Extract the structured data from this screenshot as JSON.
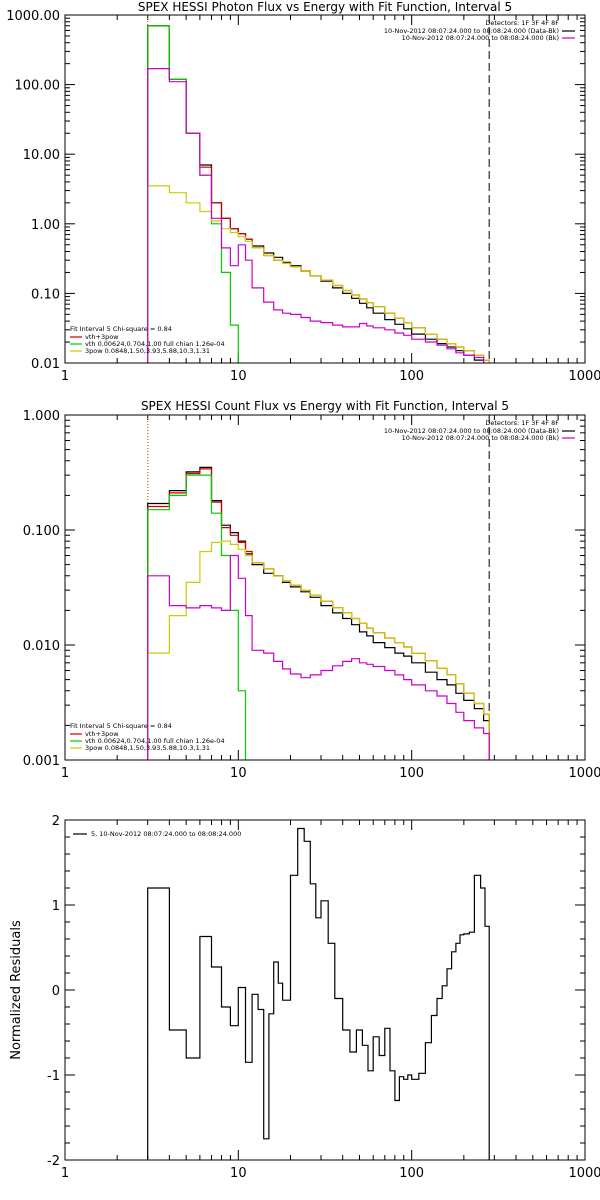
{
  "chart_data": [
    {
      "type": "line",
      "title": "SPEX HESSI Photon Flux vs Energy with Fit Function, Interval 5",
      "xscale": "log",
      "yscale": "log",
      "xlim": [
        1,
        1000
      ],
      "ylim": [
        0.01,
        1000
      ],
      "xticks": [
        {
          "v": 1,
          "label": "1"
        },
        {
          "v": 10,
          "label": "10"
        },
        {
          "v": 100,
          "label": "100"
        },
        {
          "v": 1000,
          "label": "1000"
        }
      ],
      "yticks": [
        {
          "v": 0.01,
          "label": "0.01"
        },
        {
          "v": 0.1,
          "label": "0.10"
        },
        {
          "v": 1,
          "label": "1.00"
        },
        {
          "v": 10,
          "label": "10.00"
        },
        {
          "v": 100,
          "label": "100.00"
        },
        {
          "v": 1000,
          "label": "1000.00"
        }
      ],
      "ylabel": "",
      "vlines": [
        {
          "x": 3,
          "color": "#000000",
          "style": "dotted"
        },
        {
          "x": 3,
          "color": "#e69500",
          "style": "dotted"
        },
        {
          "x": 280,
          "color": "#000000",
          "style": "dashed"
        }
      ],
      "legend_topright": {
        "position": "top-right",
        "header": "Detectors: 1F 3F 4F 8F",
        "entries": [
          {
            "label": "10-Nov-2012 08:07:24.000 to 08:08:24.000 (Data-Bk)",
            "color": "#000000"
          },
          {
            "label": "10-Nov-2012 08:07:24.000 to 08:08:24.000 (Bk)",
            "color": "#cc00cc"
          }
        ]
      },
      "legend_bottomleft": {
        "position": "bottom-left",
        "header": "Fit Interval 5   Chi-square = 0.84",
        "entries": [
          {
            "label": "vth+3pow",
            "color": "#cc0000"
          },
          {
            "label": "vth 0.00624,0.704,1.00   full chian 1.26e-04",
            "color": "#00cc00"
          },
          {
            "label": "3pow 0.0848,1.50,3.93,5.88,10.3,1.31",
            "color": "#cccc00"
          }
        ]
      },
      "series": [
        {
          "name": "Data-Bk",
          "color": "#000000",
          "edges": [
            3,
            3.5,
            4,
            5,
            6,
            7,
            8,
            9,
            10,
            11,
            12,
            14,
            16,
            18,
            20,
            23,
            26,
            30,
            35,
            40,
            45,
            50,
            55,
            60,
            70,
            80,
            90,
            100,
            120,
            140,
            160,
            180,
            200,
            230,
            260,
            280
          ],
          "values": [
            700,
            700,
            120,
            20,
            7,
            2,
            1.2,
            0.85,
            0.72,
            0.6,
            0.48,
            0.38,
            0.33,
            0.28,
            0.25,
            0.21,
            0.18,
            0.15,
            0.12,
            0.1,
            0.085,
            0.072,
            0.062,
            0.052,
            0.042,
            0.036,
            0.031,
            0.026,
            0.022,
            0.019,
            0.017,
            0.015,
            0.013,
            0.011,
            0.009
          ]
        },
        {
          "name": "vth+3pow",
          "color": "#cc0000",
          "edges": [
            3,
            3.5,
            4,
            5,
            6,
            7,
            8,
            9,
            10,
            11,
            12,
            14,
            16,
            18,
            20,
            23,
            26,
            30,
            35,
            40,
            45,
            50,
            55,
            60,
            70,
            80,
            90,
            100,
            120,
            140,
            160,
            180,
            200,
            230,
            260,
            280
          ],
          "values": [
            700,
            700,
            120,
            20,
            6.5,
            2,
            1.2,
            0.85,
            0.72,
            0.6,
            0.45,
            0.35,
            0.3,
            0.27,
            0.24,
            0.21,
            0.18,
            0.155,
            0.13,
            0.11,
            0.095,
            0.083,
            0.073,
            0.064,
            0.052,
            0.044,
            0.038,
            0.032,
            0.026,
            0.022,
            0.019,
            0.017,
            0.015,
            0.013,
            0.011
          ]
        },
        {
          "name": "vth",
          "color": "#00cc00",
          "edges": [
            3,
            3.5,
            4,
            5,
            6,
            7,
            8,
            9,
            10
          ],
          "values": [
            700,
            700,
            120,
            20,
            5,
            1,
            0.2,
            0.035,
            0.001
          ]
        },
        {
          "name": "3pow",
          "color": "#cccc00",
          "edges": [
            3,
            3.5,
            4,
            5,
            6,
            7,
            8,
            9,
            10,
            11,
            12,
            14,
            16,
            18,
            20,
            23,
            26,
            30,
            35,
            40,
            45,
            50,
            55,
            60,
            70,
            80,
            90,
            100,
            120,
            140,
            160,
            180,
            200,
            230,
            260,
            280
          ],
          "values": [
            3.5,
            3.5,
            2.8,
            2.0,
            1.5,
            1.1,
            0.85,
            0.75,
            0.65,
            0.56,
            0.45,
            0.35,
            0.3,
            0.27,
            0.24,
            0.21,
            0.18,
            0.155,
            0.13,
            0.11,
            0.095,
            0.083,
            0.073,
            0.064,
            0.052,
            0.044,
            0.038,
            0.032,
            0.026,
            0.022,
            0.019,
            0.017,
            0.015,
            0.013,
            0.011
          ]
        },
        {
          "name": "Bk",
          "color": "#cc00cc",
          "edges": [
            3,
            4,
            5,
            6,
            7,
            8,
            9,
            10,
            11,
            12,
            14,
            16,
            18,
            20,
            23,
            26,
            30,
            35,
            40,
            45,
            50,
            55,
            60,
            70,
            80,
            90,
            100,
            120,
            140,
            160,
            180,
            200,
            230,
            260
          ],
          "values": [
            170,
            110,
            20,
            5,
            1.2,
            0.45,
            0.25,
            0.5,
            0.3,
            0.12,
            0.075,
            0.058,
            0.052,
            0.05,
            0.045,
            0.04,
            0.038,
            0.035,
            0.033,
            0.033,
            0.037,
            0.034,
            0.032,
            0.03,
            0.027,
            0.025,
            0.022,
            0.02,
            0.018,
            0.016,
            0.014,
            0.013,
            0.012
          ]
        }
      ]
    },
    {
      "type": "line",
      "title": "SPEX HESSI Count Flux vs Energy with Fit Function, Interval 5",
      "xscale": "log",
      "yscale": "log",
      "xlim": [
        1,
        1000
      ],
      "ylim": [
        0.001,
        1
      ],
      "xticks": [
        {
          "v": 1,
          "label": "1"
        },
        {
          "v": 10,
          "label": "10"
        },
        {
          "v": 100,
          "label": "100"
        },
        {
          "v": 1000,
          "label": "1000"
        }
      ],
      "yticks": [
        {
          "v": 0.001,
          "label": "0.001"
        },
        {
          "v": 0.01,
          "label": "0.010"
        },
        {
          "v": 0.1,
          "label": "0.100"
        },
        {
          "v": 1,
          "label": "1.000"
        }
      ],
      "ylabel": "",
      "vlines": [
        {
          "x": 3,
          "color": "#000000",
          "style": "dotted"
        },
        {
          "x": 3,
          "color": "#e69500",
          "style": "dotted"
        },
        {
          "x": 280,
          "color": "#000000",
          "style": "dashed"
        }
      ],
      "legend_topright": {
        "position": "top-right",
        "header": "Detectors: 1F 3F 4F 8F",
        "entries": [
          {
            "label": "10-Nov-2012 08:07:24.000 to 08:08:24.000 (Data-Bk)",
            "color": "#000000"
          },
          {
            "label": "10-Nov-2012 08:07:24.000 to 08:08:24.000 (Bk)",
            "color": "#cc00cc"
          }
        ]
      },
      "legend_bottomleft": {
        "position": "bottom-left",
        "header": "Fit Interval 5   Chi-square = 0.84",
        "entries": [
          {
            "label": "vth+3pow",
            "color": "#cc0000"
          },
          {
            "label": "vth 0.00624,0.704,1.00   full chian 1.26e-04",
            "color": "#00cc00"
          },
          {
            "label": "3pow 0.0848,1.50,3.93,5.88,10.3,1.31",
            "color": "#cccc00"
          }
        ]
      },
      "series": [
        {
          "name": "Data-Bk",
          "color": "#000000",
          "edges": [
            3,
            4,
            5,
            6,
            7,
            8,
            9,
            10,
            11,
            12,
            14,
            16,
            18,
            20,
            23,
            26,
            30,
            35,
            40,
            45,
            50,
            55,
            60,
            70,
            80,
            90,
            100,
            120,
            140,
            160,
            180,
            200,
            230,
            260,
            280
          ],
          "values": [
            0.17,
            0.22,
            0.32,
            0.35,
            0.18,
            0.11,
            0.095,
            0.08,
            0.062,
            0.05,
            0.042,
            0.04,
            0.035,
            0.032,
            0.029,
            0.026,
            0.022,
            0.019,
            0.017,
            0.015,
            0.013,
            0.012,
            0.0105,
            0.0095,
            0.0085,
            0.008,
            0.007,
            0.0058,
            0.005,
            0.0045,
            0.0038,
            0.0033,
            0.0028,
            0.0022
          ]
        },
        {
          "name": "vth+3pow",
          "color": "#cc0000",
          "edges": [
            3,
            4,
            5,
            6,
            7,
            8,
            9,
            10,
            11,
            12,
            14,
            16,
            18,
            20,
            23,
            26,
            30,
            35,
            40,
            45,
            50,
            55,
            60,
            70,
            80,
            90,
            100,
            120,
            140,
            160,
            180,
            200,
            230,
            260,
            280
          ],
          "values": [
            0.16,
            0.21,
            0.31,
            0.34,
            0.175,
            0.105,
            0.09,
            0.078,
            0.065,
            0.052,
            0.046,
            0.04,
            0.036,
            0.033,
            0.03,
            0.027,
            0.024,
            0.021,
            0.019,
            0.017,
            0.0155,
            0.014,
            0.0128,
            0.0115,
            0.0105,
            0.0096,
            0.0085,
            0.0073,
            0.0063,
            0.0055,
            0.0046,
            0.0038,
            0.0031,
            0.0025
          ]
        },
        {
          "name": "vth",
          "color": "#00cc00",
          "edges": [
            3,
            4,
            5,
            6,
            7,
            8,
            9,
            10,
            11
          ],
          "values": [
            0.15,
            0.2,
            0.3,
            0.3,
            0.14,
            0.06,
            0.02,
            0.004,
            0.0005
          ]
        },
        {
          "name": "3pow",
          "color": "#cccc00",
          "edges": [
            3,
            4,
            5,
            6,
            7,
            8,
            9,
            10,
            11,
            12,
            14,
            16,
            18,
            20,
            23,
            26,
            30,
            35,
            40,
            45,
            50,
            55,
            60,
            70,
            80,
            90,
            100,
            120,
            140,
            160,
            180,
            200,
            230,
            260,
            280
          ],
          "values": [
            0.0085,
            0.018,
            0.035,
            0.065,
            0.078,
            0.08,
            0.075,
            0.068,
            0.06,
            0.052,
            0.046,
            0.04,
            0.036,
            0.033,
            0.03,
            0.027,
            0.024,
            0.021,
            0.019,
            0.017,
            0.0155,
            0.014,
            0.0128,
            0.0115,
            0.0105,
            0.0096,
            0.0085,
            0.0073,
            0.0063,
            0.0055,
            0.0046,
            0.0038,
            0.0031,
            0.0025
          ]
        },
        {
          "name": "Bk",
          "color": "#cc00cc",
          "edges": [
            3,
            4,
            5,
            6,
            7,
            8,
            9,
            10,
            11,
            12,
            14,
            16,
            18,
            20,
            23,
            26,
            30,
            35,
            40,
            45,
            50,
            55,
            60,
            70,
            80,
            90,
            100,
            120,
            140,
            160,
            180,
            200,
            230,
            260,
            280
          ],
          "values": [
            0.04,
            0.022,
            0.021,
            0.022,
            0.021,
            0.02,
            0.06,
            0.038,
            0.018,
            0.009,
            0.0085,
            0.0072,
            0.0062,
            0.0056,
            0.0052,
            0.0055,
            0.006,
            0.0066,
            0.0072,
            0.0076,
            0.007,
            0.0068,
            0.0065,
            0.006,
            0.0055,
            0.005,
            0.0045,
            0.004,
            0.0036,
            0.0031,
            0.0026,
            0.0022,
            0.0019,
            0.0017
          ]
        }
      ]
    },
    {
      "type": "line",
      "title": "",
      "xscale": "log",
      "yscale": "linear",
      "xlim": [
        1,
        1000
      ],
      "ylim": [
        -2,
        2
      ],
      "ylabel": "Normalized Residuals",
      "xticks": [
        {
          "v": 1,
          "label": "1"
        },
        {
          "v": 10,
          "label": "10"
        },
        {
          "v": 100,
          "label": "100"
        },
        {
          "v": 1000,
          "label": "1000"
        }
      ],
      "yticks": [
        {
          "v": -2,
          "label": "-2"
        },
        {
          "v": -1,
          "label": "-1"
        },
        {
          "v": 0,
          "label": "0"
        },
        {
          "v": 1,
          "label": "1"
        },
        {
          "v": 2,
          "label": "2"
        }
      ],
      "legend_topleft": {
        "position": "top-left",
        "entries": [
          {
            "label": "5, 10-Nov-2012 08:07:24.000 to 08:08:24.000",
            "color": "#000000"
          }
        ]
      },
      "series": [
        {
          "name": "residuals",
          "color": "#000000",
          "edges": [
            3,
            4,
            5,
            6,
            7,
            8,
            9,
            10,
            11,
            12,
            13,
            14,
            15,
            16,
            17,
            18,
            20,
            22,
            24,
            26,
            28,
            30,
            33,
            36,
            40,
            44,
            48,
            52,
            56,
            60,
            65,
            70,
            75,
            80,
            85,
            90,
            95,
            100,
            110,
            120,
            130,
            140,
            150,
            160,
            170,
            180,
            190,
            200,
            215,
            230,
            250,
            265,
            280
          ],
          "values": [
            1.2,
            -0.47,
            -0.8,
            0.63,
            0.27,
            -0.2,
            -0.42,
            0.03,
            -0.85,
            -0.05,
            -0.23,
            -1.75,
            -0.28,
            0.33,
            0.08,
            -0.12,
            1.35,
            1.9,
            1.75,
            1.25,
            0.85,
            1.05,
            0.55,
            -0.1,
            -0.47,
            -0.73,
            -0.47,
            -0.65,
            -0.95,
            -0.55,
            -0.77,
            -0.45,
            -0.95,
            -1.3,
            -1.02,
            -1.05,
            -1.0,
            -1.05,
            -0.98,
            -0.62,
            -0.3,
            -0.1,
            0.05,
            0.25,
            0.45,
            0.55,
            0.65,
            0.66,
            0.68,
            1.35,
            1.2,
            0.75
          ]
        }
      ]
    }
  ]
}
